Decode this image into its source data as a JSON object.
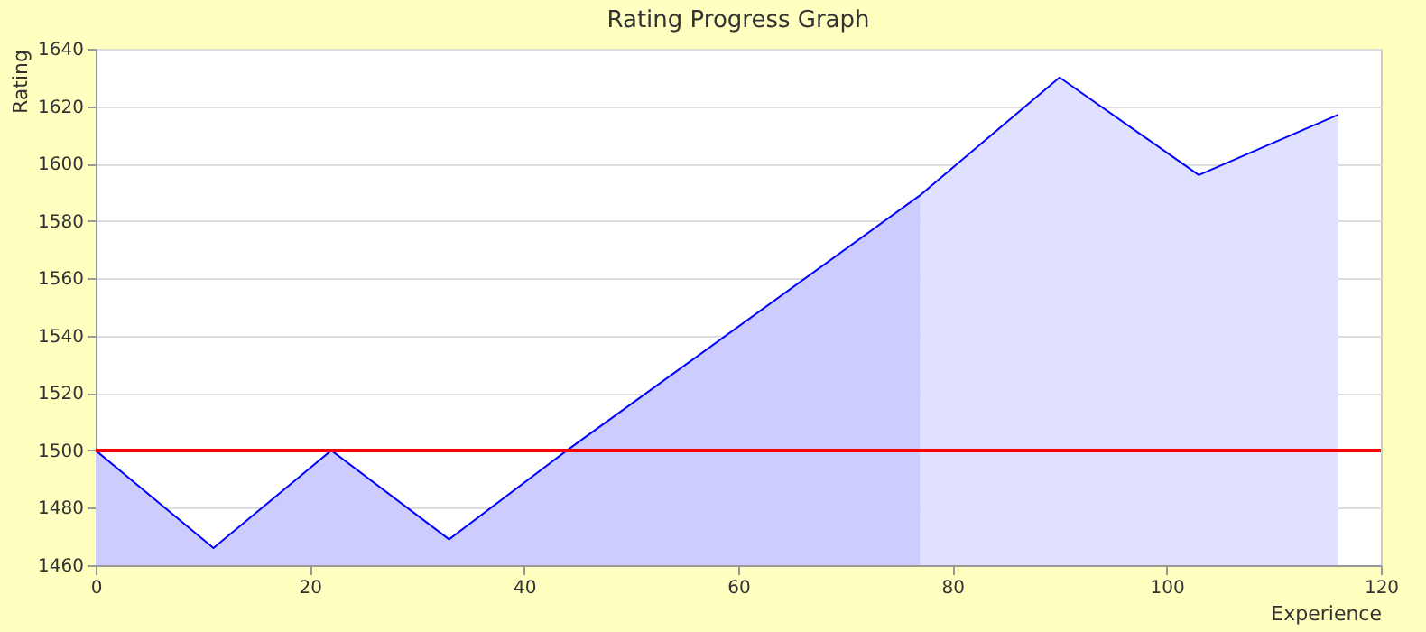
{
  "chart_data": {
    "type": "area",
    "title": "Rating Progress Graph",
    "xlabel": "Experience",
    "ylabel": "Rating",
    "xlim": [
      0,
      120
    ],
    "xticks": [
      0,
      20,
      40,
      60,
      80,
      100,
      120
    ],
    "ylim": [
      1460,
      1640
    ],
    "yticks": [
      1460,
      1480,
      1500,
      1520,
      1540,
      1560,
      1580,
      1600,
      1620,
      1640
    ],
    "grid": "y",
    "marker": "none",
    "line_style": "solid",
    "series": [
      {
        "color": "#ccccff",
        "x": [
          0,
          11,
          22,
          33,
          44,
          77
        ],
        "values": [
          1500,
          1466,
          1500,
          1469,
          1500,
          1589
        ]
      },
      {
        "color": "#e0e0ff",
        "x": [
          77,
          90,
          103,
          116
        ],
        "values": [
          1589,
          1630,
          1596,
          1617
        ]
      },
      {
        "type": "line",
        "color": "#0000ff",
        "x": [
          0,
          11,
          22,
          33,
          44,
          77,
          90,
          103,
          116
        ],
        "values": [
          1500,
          1466,
          1500,
          1469,
          1500,
          1589,
          1630,
          1596,
          1617
        ]
      }
    ],
    "ref_lines": [
      {
        "axis": "y",
        "value": 1500,
        "color": "#ff0000",
        "line_style": "solid"
      }
    ]
  }
}
